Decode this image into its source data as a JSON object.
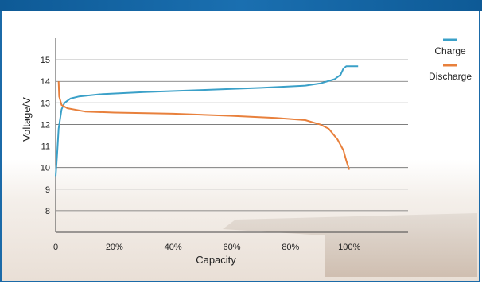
{
  "chart_data": {
    "type": "line",
    "xlabel": "Capacity",
    "ylabel": "Voltage/V",
    "xlim": [
      0,
      120
    ],
    "ylim": [
      7,
      16
    ],
    "x_ticks": [
      0,
      20,
      40,
      60,
      80,
      100
    ],
    "x_tick_labels": [
      "0",
      "20%",
      "40%",
      "60%",
      "80%",
      "100%"
    ],
    "y_ticks": [
      8,
      9,
      10,
      11,
      12,
      13,
      14,
      15
    ],
    "y_tick_labels": [
      "8",
      "9",
      "10",
      "11",
      "12",
      "13",
      "14",
      "15"
    ],
    "grid": "horizontal",
    "legend_position": "right",
    "series": [
      {
        "name": "Charge",
        "color": "#3aa0c8",
        "points": [
          [
            0,
            9.6
          ],
          [
            0.5,
            10.6
          ],
          [
            1,
            11.8
          ],
          [
            2,
            12.7
          ],
          [
            3,
            13.0
          ],
          [
            5,
            13.2
          ],
          [
            8,
            13.3
          ],
          [
            15,
            13.4
          ],
          [
            30,
            13.5
          ],
          [
            50,
            13.6
          ],
          [
            70,
            13.7
          ],
          [
            85,
            13.8
          ],
          [
            90,
            13.9
          ],
          [
            95,
            14.1
          ],
          [
            97,
            14.3
          ],
          [
            98,
            14.6
          ],
          [
            99,
            14.7
          ],
          [
            103,
            14.7
          ]
        ]
      },
      {
        "name": "Discharge",
        "color": "#e8803c",
        "points": [
          [
            1,
            14.0
          ],
          [
            1.2,
            13.3
          ],
          [
            2,
            12.9
          ],
          [
            4,
            12.75
          ],
          [
            10,
            12.6
          ],
          [
            20,
            12.55
          ],
          [
            40,
            12.5
          ],
          [
            60,
            12.4
          ],
          [
            75,
            12.3
          ],
          [
            85,
            12.2
          ],
          [
            90,
            12.0
          ],
          [
            93,
            11.8
          ],
          [
            96,
            11.3
          ],
          [
            98,
            10.8
          ],
          [
            99,
            10.3
          ],
          [
            100,
            9.9
          ]
        ]
      }
    ]
  }
}
